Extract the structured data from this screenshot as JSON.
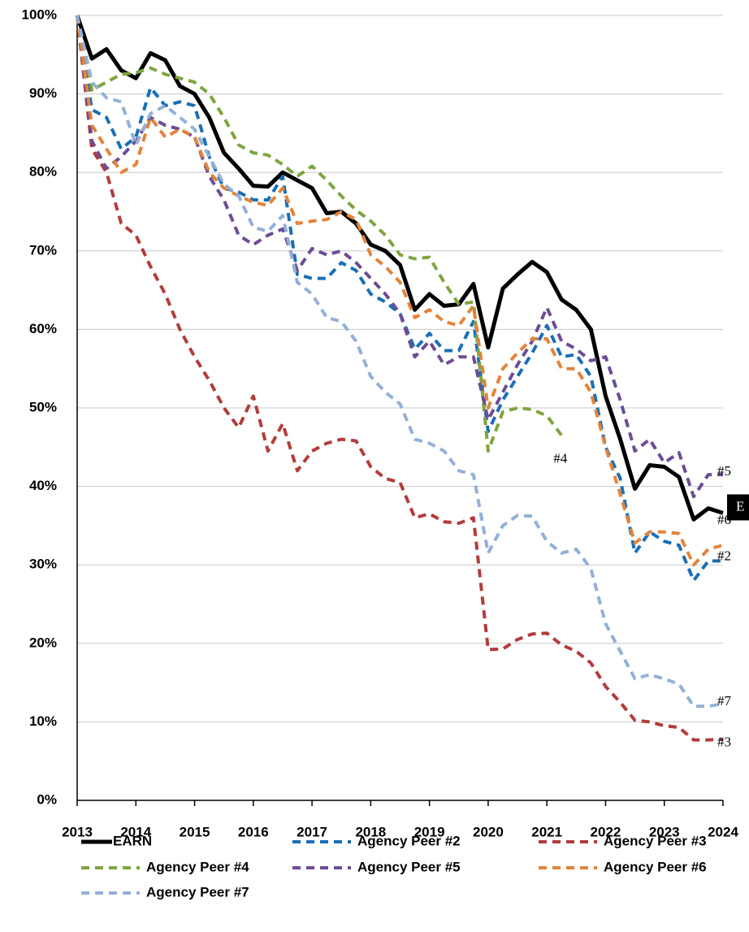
{
  "chart_data": {
    "type": "line",
    "x": [
      2013,
      2013.25,
      2013.5,
      2013.75,
      2014,
      2014.25,
      2014.5,
      2014.75,
      2015,
      2015.25,
      2015.5,
      2015.75,
      2016,
      2016.25,
      2016.5,
      2016.75,
      2017,
      2017.25,
      2017.5,
      2017.75,
      2018,
      2018.25,
      2018.5,
      2018.75,
      2019,
      2019.25,
      2019.5,
      2019.75,
      2020,
      2020.25,
      2020.5,
      2020.75,
      2021,
      2021.25,
      2021.5,
      2021.75,
      2022,
      2022.25,
      2022.5,
      2022.75,
      2023,
      2023.25,
      2023.5,
      2023.75,
      2024
    ],
    "xlim": [
      2013,
      2024
    ],
    "xticks": [
      2013,
      2014,
      2015,
      2016,
      2017,
      2018,
      2019,
      2020,
      2021,
      2022,
      2023,
      2024
    ],
    "ylim": [
      0,
      100
    ],
    "yticks": [
      {
        "value": 0,
        "label": "0%"
      },
      {
        "value": 10,
        "label": "10%"
      },
      {
        "value": 20,
        "label": "20%"
      },
      {
        "value": 30,
        "label": "30%"
      },
      {
        "value": 40,
        "label": "40%"
      },
      {
        "value": 50,
        "label": "50%"
      },
      {
        "value": 60,
        "label": "60%"
      },
      {
        "value": 70,
        "label": "70%"
      },
      {
        "value": 80,
        "label": "80%"
      },
      {
        "value": 90,
        "label": "90%"
      },
      {
        "value": 100,
        "label": "100%"
      }
    ],
    "grid": true,
    "legend": "bottom",
    "series": [
      {
        "name": "EARN",
        "color": "#000000",
        "dashed": false,
        "end_label": "E",
        "values": [
          100,
          94.5,
          95.7,
          93,
          92,
          95.2,
          94.3,
          91,
          90,
          87,
          82.5,
          80.5,
          78.3,
          78.2,
          80,
          79,
          78,
          74.8,
          75,
          73.5,
          70.8,
          70,
          68.2,
          62.5,
          64.5,
          63,
          63.2,
          65.8,
          57.7,
          65.2,
          67,
          68.6,
          67.3,
          63.8,
          62.5,
          60,
          51.5,
          46,
          39.7,
          42.7,
          42.5,
          41.2,
          35.8,
          37.2,
          36.6
        ]
      },
      {
        "name": "Agency Peer #2",
        "color": "#1a6fb5",
        "dashed": true,
        "end_label": "#2",
        "values": [
          100,
          88,
          87,
          83,
          84.5,
          90.8,
          88.5,
          89,
          88.5,
          82,
          78,
          77.5,
          76.5,
          76.5,
          79.5,
          67,
          66.5,
          66.5,
          68.5,
          67.5,
          64.5,
          63.5,
          62,
          57.5,
          59.5,
          57.3,
          57.3,
          61,
          47,
          51,
          54,
          57,
          60.5,
          56.5,
          56.8,
          54,
          45,
          41,
          31.5,
          34.2,
          33,
          32.5,
          28,
          30.5,
          30.5
        ]
      },
      {
        "name": "Agency Peer #3",
        "color": "#b23c3c",
        "dashed": true,
        "end_label": "#3",
        "values": [
          100,
          83,
          80,
          73.5,
          72,
          68,
          64.5,
          60,
          56.5,
          53.5,
          50,
          47.5,
          51.5,
          44.5,
          48,
          42,
          44.5,
          45.5,
          46,
          45.8,
          42.5,
          41,
          40.5,
          36,
          36.5,
          35.5,
          35.3,
          36,
          19.2,
          19.3,
          20.5,
          21.2,
          21.3,
          19.8,
          19,
          17.5,
          14.5,
          12.5,
          10.2,
          10,
          9.5,
          9.3,
          7.7,
          7.7,
          7.8
        ]
      },
      {
        "name": "Agency Peer #4",
        "color": "#7fa53f",
        "dashed": true,
        "end_label": "#4",
        "values": [
          100,
          90.5,
          91.5,
          92.5,
          92.7,
          93.3,
          92.5,
          92,
          91.5,
          90,
          87,
          83.5,
          82.5,
          82.2,
          81,
          79.5,
          80.8,
          79,
          77,
          75.2,
          73.8,
          72,
          69.5,
          69,
          69.2,
          66,
          63.2,
          63.5,
          44.5,
          49.5,
          50,
          49.8,
          49,
          46.5,
          null,
          null,
          null,
          null,
          null,
          null,
          null,
          null,
          null,
          null,
          null
        ]
      },
      {
        "name": "Agency Peer #5",
        "color": "#6c4d94",
        "dashed": true,
        "end_label": "#5",
        "values": [
          100,
          84,
          80.5,
          82,
          84,
          87,
          86,
          85.5,
          84.5,
          79.5,
          76.5,
          72,
          70.8,
          72,
          72.8,
          67.5,
          70.3,
          69.5,
          70,
          68.5,
          66.5,
          64.5,
          62,
          56.5,
          58.5,
          55.5,
          56.5,
          56.5,
          48.5,
          52,
          55.5,
          58.5,
          62.8,
          58.5,
          57.5,
          56,
          56.5,
          51,
          44.5,
          46,
          43,
          44.3,
          38.7,
          41.5,
          41.5
        ]
      },
      {
        "name": "Agency Peer #6",
        "color": "#e2843b",
        "dashed": true,
        "end_label": "#6",
        "values": [
          100,
          86,
          83,
          80,
          81,
          87,
          84.5,
          85.5,
          84.5,
          80,
          78,
          77,
          76.2,
          75.8,
          78,
          73.5,
          73.8,
          74,
          75,
          74,
          69.5,
          68,
          66,
          61.5,
          62.5,
          61,
          60.5,
          63,
          50,
          55,
          57,
          58.8,
          58.8,
          55,
          55,
          52,
          45,
          39,
          32.8,
          34.2,
          34.2,
          34,
          30,
          32,
          32.5
        ]
      },
      {
        "name": "Agency Peer #7",
        "color": "#94b0d8",
        "dashed": true,
        "end_label": "#7",
        "values": [
          100,
          91.5,
          89.5,
          89,
          83.5,
          87.5,
          88.5,
          87,
          85.5,
          82,
          78.5,
          77,
          73,
          72.5,
          74.5,
          66,
          64.5,
          61.5,
          61,
          58.5,
          54,
          52,
          50.5,
          46,
          45.5,
          44.5,
          42,
          41.5,
          31.5,
          35,
          36.3,
          36.2,
          33,
          31.5,
          32,
          29.5,
          22.5,
          19,
          15.5,
          16,
          15.5,
          14.8,
          12,
          12,
          12.3
        ]
      }
    ]
  }
}
